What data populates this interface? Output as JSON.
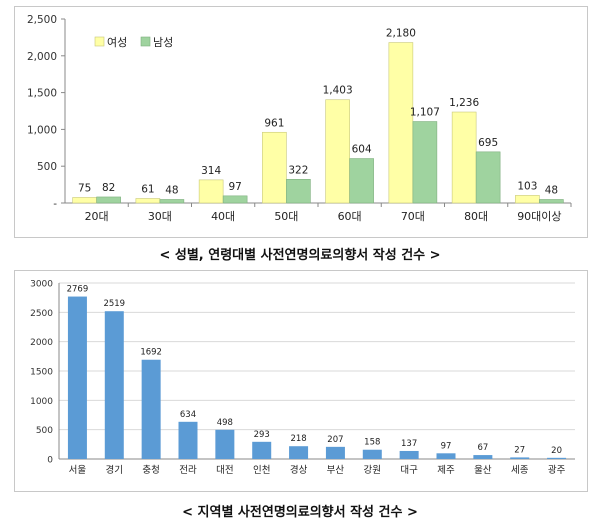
{
  "chart_data": [
    {
      "type": "bar",
      "title": "< 성별, 연령대별 사전연명의료의향서 작성 건수 >",
      "categories": [
        "20대",
        "30대",
        "40대",
        "50대",
        "60대",
        "70대",
        "80대",
        "90대이상"
      ],
      "series": [
        {
          "name": "여성",
          "color": "#ffffa6",
          "values": [
            75,
            61,
            314,
            961,
            1403,
            2180,
            1236,
            103
          ]
        },
        {
          "name": "남성",
          "color": "#9fd39f",
          "values": [
            82,
            48,
            97,
            322,
            604,
            1107,
            695,
            48
          ]
        }
      ],
      "ylim": [
        0,
        2500
      ],
      "yticks": [
        0,
        500,
        1000,
        1500,
        2000,
        2500
      ],
      "ytick_labels": [
        "-",
        "500",
        "1,000",
        "1,500",
        "2,000",
        "2,500"
      ],
      "legend": "top-left",
      "grid": false
    },
    {
      "type": "bar",
      "title": "< 지역별 사전연명의료의향서 작성 건수 >",
      "categories": [
        "서울",
        "경기",
        "충청",
        "전라",
        "대전",
        "인천",
        "경상",
        "부산",
        "강원",
        "대구",
        "제주",
        "울산",
        "세종",
        "광주"
      ],
      "values": [
        2769,
        2519,
        1692,
        634,
        498,
        293,
        218,
        207,
        158,
        137,
        97,
        67,
        27,
        20
      ],
      "color": "#5b9bd5",
      "ylim": [
        0,
        3000
      ],
      "yticks": [
        0,
        500,
        1000,
        1500,
        2000,
        2500,
        3000
      ],
      "ytick_labels": [
        "0",
        "500",
        "1000",
        "1500",
        "2000",
        "2500",
        "3000"
      ],
      "grid": true
    }
  ]
}
